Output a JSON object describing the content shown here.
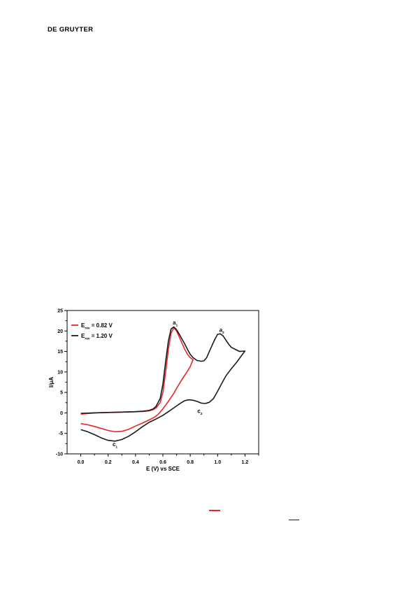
{
  "header": {
    "publisher": "DE GRUYTER"
  },
  "chart_data": {
    "type": "line",
    "title": "",
    "xlabel": "E (V) vs SCE",
    "ylabel": "I/μA",
    "xlim": [
      -0.1,
      1.3
    ],
    "ylim": [
      -10,
      25
    ],
    "x_ticks": [
      "0.0",
      "0.2",
      "0.4",
      "0.6",
      "0.8",
      "1.0",
      "1.2"
    ],
    "y_ticks": [
      "-10",
      "-5",
      "0",
      "5",
      "10",
      "15",
      "20",
      "25"
    ],
    "grid": false,
    "legend_position": "top-left",
    "legend": [
      {
        "base": "E",
        "sub": "rev",
        "rest": " = 0.82 V",
        "color": "#e8262a"
      },
      {
        "base": "E",
        "sub": "rev",
        "rest": " = 1.20 V",
        "color": "#1a1a1a"
      }
    ],
    "annotations": [
      {
        "base": "a",
        "sub": "1",
        "x": 0.69,
        "y": 21.6
      },
      {
        "base": "a",
        "sub": "2",
        "x": 1.03,
        "y": 19.8
      },
      {
        "base": "c",
        "sub": "1",
        "x": 0.25,
        "y": -8.1
      },
      {
        "base": "c",
        "sub": "2",
        "x": 0.87,
        "y": 0.0
      }
    ],
    "series": [
      {
        "name": "Erev = 0.82 V",
        "color": "#e8262a",
        "x": [
          0.0,
          0.1,
          0.2,
          0.3,
          0.4,
          0.45,
          0.5,
          0.53,
          0.55,
          0.58,
          0.6,
          0.62,
          0.64,
          0.66,
          0.68,
          0.7,
          0.72,
          0.74,
          0.76,
          0.78,
          0.8,
          0.82,
          0.8,
          0.78,
          0.76,
          0.74,
          0.72,
          0.7,
          0.68,
          0.66,
          0.64,
          0.62,
          0.6,
          0.58,
          0.56,
          0.54,
          0.5,
          0.45,
          0.4,
          0.35,
          0.3,
          0.25,
          0.2,
          0.15,
          0.1,
          0.05,
          0.0
        ],
        "y": [
          -0.3,
          0.0,
          0.1,
          0.2,
          0.3,
          0.35,
          0.5,
          0.8,
          1.2,
          2.5,
          5.0,
          10.0,
          15.5,
          19.5,
          20.8,
          20.0,
          18.5,
          17.0,
          15.5,
          14.3,
          13.5,
          13.0,
          11.3,
          10.2,
          9.2,
          8.2,
          7.1,
          6.0,
          4.8,
          3.8,
          2.8,
          1.9,
          1.0,
          0.2,
          -0.5,
          -1.0,
          -1.7,
          -2.5,
          -3.2,
          -4.0,
          -4.5,
          -4.6,
          -4.3,
          -3.8,
          -3.3,
          -2.9,
          -2.6
        ]
      },
      {
        "name": "Erev = 1.20 V",
        "color": "#1a1a1a",
        "x": [
          0.0,
          0.1,
          0.2,
          0.3,
          0.4,
          0.45,
          0.5,
          0.53,
          0.55,
          0.58,
          0.6,
          0.62,
          0.64,
          0.66,
          0.68,
          0.7,
          0.72,
          0.74,
          0.76,
          0.78,
          0.8,
          0.82,
          0.85,
          0.88,
          0.9,
          0.92,
          0.95,
          0.98,
          1.0,
          1.02,
          1.04,
          1.06,
          1.08,
          1.1,
          1.13,
          1.16,
          1.2,
          1.17,
          1.14,
          1.1,
          1.06,
          1.03,
          1.0,
          0.97,
          0.94,
          0.91,
          0.88,
          0.85,
          0.82,
          0.79,
          0.76,
          0.73,
          0.7,
          0.67,
          0.64,
          0.6,
          0.55,
          0.5,
          0.45,
          0.4,
          0.35,
          0.3,
          0.25,
          0.2,
          0.15,
          0.1,
          0.05,
          0.0
        ],
        "y": [
          -0.1,
          0.0,
          0.1,
          0.2,
          0.3,
          0.4,
          0.6,
          1.0,
          1.6,
          3.5,
          7.0,
          12.5,
          17.5,
          20.5,
          21.0,
          20.3,
          19.2,
          18.0,
          16.8,
          15.5,
          14.3,
          13.5,
          12.8,
          12.6,
          12.7,
          13.5,
          15.8,
          18.0,
          19.2,
          19.3,
          18.8,
          17.8,
          16.8,
          16.0,
          15.5,
          15.0,
          15.1,
          13.8,
          12.4,
          10.8,
          9.0,
          7.2,
          5.3,
          3.5,
          2.6,
          2.3,
          2.4,
          2.8,
          3.1,
          3.2,
          3.0,
          2.4,
          1.7,
          1.0,
          0.3,
          -0.6,
          -1.5,
          -2.3,
          -3.4,
          -4.6,
          -5.7,
          -6.5,
          -6.9,
          -6.7,
          -6.1,
          -5.3,
          -4.6,
          -4.1
        ]
      }
    ]
  },
  "footer_marks": [
    {
      "color": "#e8262a"
    },
    {
      "color": "#1a1a1a"
    }
  ]
}
